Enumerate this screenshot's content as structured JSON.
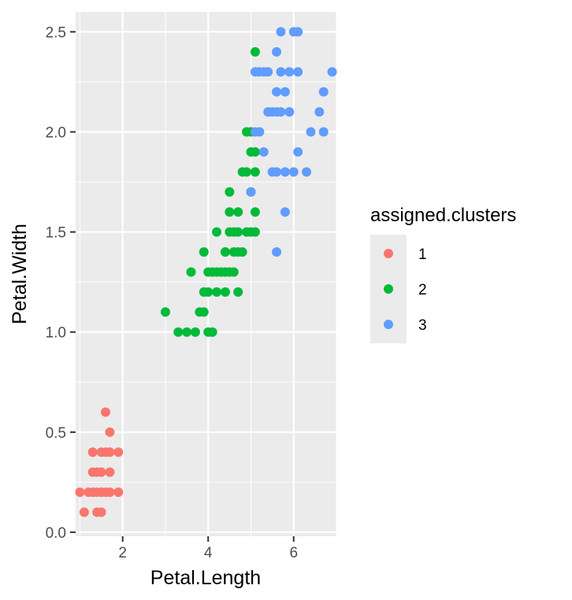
{
  "chart_data": {
    "type": "scatter",
    "xlabel": "Petal.Length",
    "ylabel": "Petal.Width",
    "xlim": [
      0.9,
      7.0
    ],
    "ylim": [
      -0.02,
      2.6
    ],
    "x_ticks": [
      2,
      4,
      6
    ],
    "x_tick_labels": [
      "2",
      "4",
      "6"
    ],
    "y_ticks": [
      0.0,
      0.5,
      1.0,
      1.5,
      2.0,
      2.5
    ],
    "y_tick_labels": [
      "0.0",
      "0.5",
      "1.0",
      "1.5",
      "2.0",
      "2.5"
    ],
    "grid": true,
    "legend_position": "right",
    "legend_title": "assigned.clusters",
    "series": [
      {
        "name": "1",
        "color": "#F8766D",
        "points": [
          [
            1.0,
            0.2
          ],
          [
            1.1,
            0.1
          ],
          [
            1.2,
            0.2
          ],
          [
            1.3,
            0.2
          ],
          [
            1.3,
            0.3
          ],
          [
            1.3,
            0.4
          ],
          [
            1.4,
            0.1
          ],
          [
            1.4,
            0.2
          ],
          [
            1.4,
            0.3
          ],
          [
            1.5,
            0.1
          ],
          [
            1.5,
            0.2
          ],
          [
            1.5,
            0.3
          ],
          [
            1.5,
            0.4
          ],
          [
            1.6,
            0.2
          ],
          [
            1.6,
            0.4
          ],
          [
            1.6,
            0.6
          ],
          [
            1.7,
            0.2
          ],
          [
            1.7,
            0.3
          ],
          [
            1.7,
            0.4
          ],
          [
            1.7,
            0.5
          ],
          [
            1.9,
            0.2
          ],
          [
            1.9,
            0.4
          ]
        ]
      },
      {
        "name": "2",
        "color": "#00BA38",
        "points": [
          [
            3.0,
            1.1
          ],
          [
            3.3,
            1.0
          ],
          [
            3.5,
            1.0
          ],
          [
            3.6,
            1.3
          ],
          [
            3.7,
            1.0
          ],
          [
            3.8,
            1.1
          ],
          [
            3.9,
            1.1
          ],
          [
            3.9,
            1.2
          ],
          [
            3.9,
            1.4
          ],
          [
            4.0,
            1.0
          ],
          [
            4.0,
            1.2
          ],
          [
            4.0,
            1.3
          ],
          [
            4.1,
            1.0
          ],
          [
            4.1,
            1.3
          ],
          [
            4.2,
            1.2
          ],
          [
            4.2,
            1.3
          ],
          [
            4.2,
            1.5
          ],
          [
            4.3,
            1.3
          ],
          [
            4.4,
            1.2
          ],
          [
            4.4,
            1.3
          ],
          [
            4.4,
            1.4
          ],
          [
            4.5,
            1.3
          ],
          [
            4.5,
            1.5
          ],
          [
            4.5,
            1.6
          ],
          [
            4.5,
            1.7
          ],
          [
            4.6,
            1.3
          ],
          [
            4.6,
            1.4
          ],
          [
            4.6,
            1.5
          ],
          [
            4.7,
            1.2
          ],
          [
            4.7,
            1.4
          ],
          [
            4.7,
            1.5
          ],
          [
            4.7,
            1.6
          ],
          [
            4.8,
            1.4
          ],
          [
            4.8,
            1.8
          ],
          [
            4.9,
            1.5
          ],
          [
            4.9,
            1.8
          ],
          [
            4.9,
            2.0
          ],
          [
            5.0,
            1.5
          ],
          [
            5.0,
            1.7
          ],
          [
            5.0,
            1.9
          ],
          [
            5.0,
            2.0
          ],
          [
            5.1,
            1.5
          ],
          [
            5.1,
            1.6
          ],
          [
            5.1,
            1.8
          ],
          [
            5.1,
            1.9
          ],
          [
            5.1,
            2.4
          ]
        ]
      },
      {
        "name": "3",
        "color": "#619CFF",
        "points": [
          [
            5.0,
            1.7
          ],
          [
            5.1,
            2.0
          ],
          [
            5.1,
            2.3
          ],
          [
            5.2,
            2.0
          ],
          [
            5.2,
            2.3
          ],
          [
            5.3,
            1.9
          ],
          [
            5.3,
            2.3
          ],
          [
            5.4,
            2.1
          ],
          [
            5.4,
            2.3
          ],
          [
            5.5,
            1.8
          ],
          [
            5.5,
            2.1
          ],
          [
            5.6,
            1.4
          ],
          [
            5.6,
            1.8
          ],
          [
            5.6,
            2.1
          ],
          [
            5.6,
            2.2
          ],
          [
            5.6,
            2.4
          ],
          [
            5.7,
            2.1
          ],
          [
            5.7,
            2.3
          ],
          [
            5.7,
            2.5
          ],
          [
            5.8,
            1.6
          ],
          [
            5.8,
            1.8
          ],
          [
            5.8,
            2.2
          ],
          [
            5.9,
            2.1
          ],
          [
            5.9,
            2.3
          ],
          [
            6.0,
            1.8
          ],
          [
            6.0,
            2.5
          ],
          [
            6.1,
            1.9
          ],
          [
            6.1,
            2.3
          ],
          [
            6.1,
            2.5
          ],
          [
            6.3,
            1.8
          ],
          [
            6.4,
            2.0
          ],
          [
            6.6,
            2.1
          ],
          [
            6.7,
            2.0
          ],
          [
            6.7,
            2.2
          ],
          [
            6.9,
            2.3
          ]
        ]
      }
    ]
  }
}
